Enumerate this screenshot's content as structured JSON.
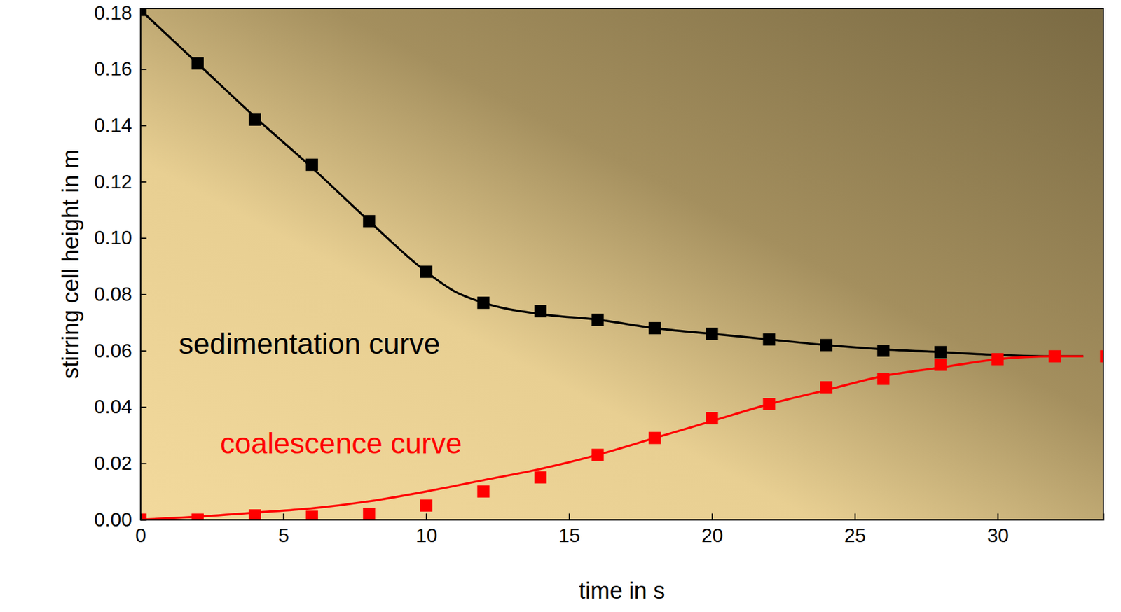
{
  "chart_data": {
    "type": "scatter",
    "x_label": "time in s",
    "y_label": "stirring cell height in m",
    "xlim": [
      0,
      33.7
    ],
    "ylim": [
      0,
      0.1815
    ],
    "xticks": [
      0,
      5,
      10,
      15,
      20,
      25,
      30
    ],
    "yticks": [
      {
        "value": 0,
        "label": "0.00"
      },
      {
        "value": 0.02,
        "label": "0.02"
      },
      {
        "value": 0.04,
        "label": "0.04"
      },
      {
        "value": 0.06,
        "label": "0.06"
      },
      {
        "value": 0.08,
        "label": "0.08"
      },
      {
        "value": 0.1,
        "label": "0.10"
      },
      {
        "value": 0.12,
        "label": "0.12"
      },
      {
        "value": 0.14,
        "label": "0.14"
      },
      {
        "value": 0.16,
        "label": "0.16"
      },
      {
        "value": 0.18,
        "label": "0.18"
      }
    ],
    "grid": false,
    "series": [
      {
        "type": "scatter",
        "color": "#000000",
        "marker": "square",
        "x": [
          0,
          2,
          4,
          6,
          8,
          10,
          12,
          14,
          16,
          18,
          20,
          22,
          24,
          26,
          28
        ],
        "values": [
          0.181,
          0.162,
          0.142,
          0.126,
          0.106,
          0.088,
          0.077,
          0.074,
          0.071,
          0.068,
          0.066,
          0.064,
          0.062,
          0.06,
          0.0595
        ]
      },
      {
        "type": "line",
        "color": "#000000",
        "line_style": "solid",
        "x": [
          0,
          2,
          4,
          6,
          8,
          10,
          11,
          12,
          14,
          16,
          18,
          20,
          22,
          24,
          26,
          28,
          30,
          32,
          33
        ],
        "values": [
          0.181,
          0.162,
          0.143,
          0.125,
          0.106,
          0.088,
          0.081,
          0.077,
          0.073,
          0.071,
          0.068,
          0.066,
          0.064,
          0.062,
          0.0605,
          0.0595,
          0.0585,
          0.058,
          0.058
        ]
      },
      {
        "type": "scatter",
        "color": "#ff0000",
        "marker": "square",
        "x": [
          0,
          2,
          4,
          6,
          8,
          10,
          12,
          14,
          16,
          18,
          20,
          22,
          24,
          26,
          28,
          30,
          32,
          33.8
        ],
        "values": [
          0.0,
          0.0,
          0.0015,
          0.001,
          0.002,
          0.005,
          0.01,
          0.015,
          0.023,
          0.029,
          0.036,
          0.041,
          0.047,
          0.05,
          0.055,
          0.057,
          0.058,
          0.058
        ]
      },
      {
        "type": "line",
        "color": "#ff0000",
        "line_style": "solid",
        "x": [
          0,
          2,
          4,
          6,
          8,
          10,
          12,
          14,
          16,
          18,
          20,
          22,
          24,
          26,
          28,
          30,
          32,
          33
        ],
        "values": [
          0.0,
          0.001,
          0.0025,
          0.004,
          0.0065,
          0.01,
          0.014,
          0.018,
          0.023,
          0.029,
          0.035,
          0.041,
          0.046,
          0.051,
          0.054,
          0.057,
          0.058,
          0.058
        ]
      }
    ],
    "annotations": [
      {
        "text": "sedimentation curve",
        "color": "#000000"
      },
      {
        "text": "coalescence curve",
        "color": "#ff0000"
      }
    ]
  }
}
